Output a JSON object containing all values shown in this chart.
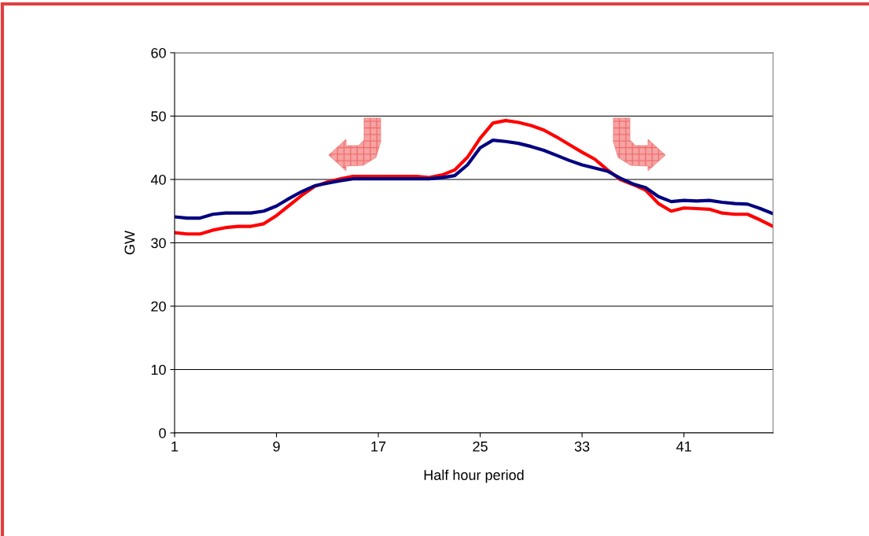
{
  "chart_data": {
    "type": "line",
    "xlabel": "Half hour period",
    "ylabel": "GW",
    "x": [
      1,
      2,
      3,
      4,
      5,
      6,
      7,
      8,
      9,
      10,
      11,
      12,
      13,
      14,
      15,
      16,
      17,
      18,
      19,
      20,
      21,
      22,
      23,
      24,
      25,
      26,
      27,
      28,
      29,
      30,
      31,
      32,
      33,
      34,
      35,
      36,
      37,
      38,
      39,
      40,
      41,
      42,
      43,
      44,
      45,
      46,
      47,
      48
    ],
    "series": [
      {
        "color": "#ff0000",
        "values": [
          31.6,
          31.4,
          31.4,
          32.0,
          32.4,
          32.6,
          32.6,
          33.0,
          34.3,
          35.9,
          37.5,
          38.9,
          39.6,
          40.1,
          40.5,
          40.5,
          40.5,
          40.5,
          40.5,
          40.5,
          40.3,
          40.7,
          41.5,
          43.5,
          46.5,
          48.9,
          49.3,
          49.0,
          48.5,
          47.8,
          46.7,
          45.5,
          44.3,
          43.2,
          41.5,
          40.0,
          39.2,
          38.3,
          36.2,
          35.0,
          35.5,
          35.4,
          35.3,
          34.7,
          34.5,
          34.5,
          33.6,
          32.6
        ]
      },
      {
        "color": "#000080",
        "values": [
          34.1,
          33.9,
          33.9,
          34.5,
          34.7,
          34.7,
          34.7,
          35.0,
          35.8,
          37.0,
          38.1,
          39.0,
          39.4,
          39.8,
          40.1,
          40.1,
          40.1,
          40.1,
          40.1,
          40.1,
          40.1,
          40.3,
          40.6,
          42.3,
          45.0,
          46.2,
          46.0,
          45.7,
          45.2,
          44.6,
          43.8,
          43.0,
          42.3,
          41.8,
          41.3,
          40.2,
          39.3,
          38.7,
          37.3,
          36.5,
          36.7,
          36.6,
          36.7,
          36.4,
          36.2,
          36.1,
          35.4,
          34.6
        ]
      }
    ],
    "xlim": [
      1,
      48
    ],
    "xticks": [
      1,
      9,
      17,
      25,
      33,
      41
    ],
    "ylim": [
      0,
      60
    ],
    "yticks": [
      0,
      10,
      20,
      30,
      40,
      50,
      60
    ],
    "grid": "y",
    "legend": false,
    "marker": "none",
    "line_style": "solid"
  }
}
